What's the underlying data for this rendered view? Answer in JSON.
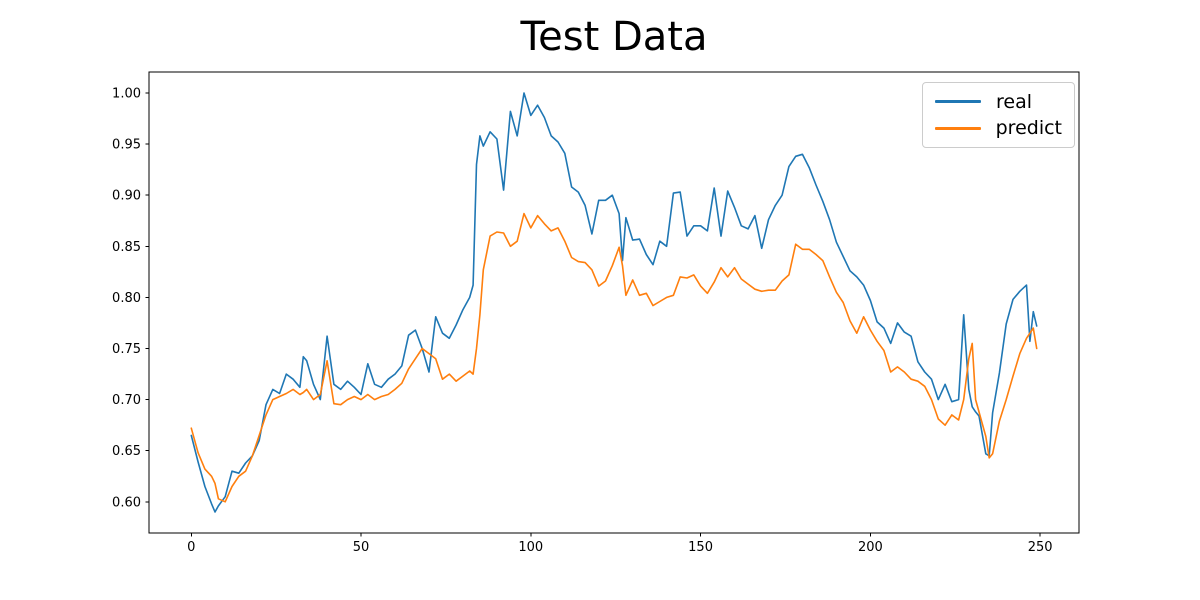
{
  "title": "Test Data",
  "legend": [
    {
      "label": "real",
      "color": "#1f77b4"
    },
    {
      "label": "predict",
      "color": "#ff7f0e"
    }
  ],
  "colors": {
    "real": "#1f77b4",
    "predict": "#ff7f0e",
    "axis": "#000000",
    "legend_border": "#cccccc",
    "background": "#ffffff"
  },
  "chart_data": {
    "type": "line",
    "title": "Test Data",
    "xlabel": "",
    "ylabel": "",
    "grid": false,
    "legend_position": "upper right",
    "xlim": [
      -12.45,
      261.45
    ],
    "ylim": [
      0.5695,
      1.0205
    ],
    "x_ticks": [
      0,
      50,
      100,
      150,
      200,
      250
    ],
    "y_ticks": [
      0.6,
      0.65,
      0.7,
      0.75,
      0.8,
      0.85,
      0.9,
      0.95,
      1.0
    ],
    "x": [
      0,
      2,
      4,
      6,
      7,
      8,
      10,
      12,
      14,
      16,
      18,
      20,
      22,
      24,
      26,
      28,
      30,
      32,
      33,
      34,
      36,
      38,
      40,
      42,
      44,
      46,
      48,
      50,
      52,
      54,
      56,
      58,
      60,
      62,
      64,
      66,
      68,
      70,
      72,
      74,
      76,
      78,
      80,
      82,
      83,
      84,
      85,
      86,
      88,
      90,
      92,
      94,
      96,
      98,
      100,
      102,
      104,
      106,
      108,
      110,
      112,
      114,
      116,
      118,
      120,
      122,
      124,
      126,
      127,
      128,
      130,
      132,
      134,
      136,
      138,
      140,
      142,
      144,
      146,
      148,
      150,
      152,
      154,
      156,
      158,
      160,
      162,
      164,
      166,
      168,
      170,
      172,
      174,
      176,
      178,
      180,
      182,
      184,
      186,
      188,
      190,
      192,
      194,
      196,
      198,
      200,
      202,
      204,
      206,
      208,
      210,
      212,
      214,
      216,
      218,
      220,
      222,
      224,
      226,
      227.5,
      229,
      230,
      231,
      232,
      234,
      235,
      236,
      238,
      240,
      242,
      244,
      246,
      247,
      248,
      249
    ],
    "series": [
      {
        "name": "real",
        "color": "#1f77b4",
        "values": [
          0.665,
          0.639,
          0.615,
          0.598,
          0.59,
          0.596,
          0.605,
          0.63,
          0.628,
          0.638,
          0.645,
          0.66,
          0.695,
          0.71,
          0.706,
          0.725,
          0.72,
          0.712,
          0.742,
          0.738,
          0.715,
          0.7,
          0.762,
          0.715,
          0.71,
          0.718,
          0.712,
          0.705,
          0.735,
          0.715,
          0.712,
          0.72,
          0.725,
          0.733,
          0.763,
          0.768,
          0.75,
          0.727,
          0.781,
          0.765,
          0.76,
          0.773,
          0.788,
          0.8,
          0.812,
          0.93,
          0.958,
          0.948,
          0.962,
          0.955,
          0.905,
          0.982,
          0.958,
          1.0,
          0.978,
          0.988,
          0.976,
          0.958,
          0.952,
          0.941,
          0.908,
          0.903,
          0.89,
          0.862,
          0.895,
          0.895,
          0.9,
          0.882,
          0.836,
          0.878,
          0.856,
          0.857,
          0.842,
          0.832,
          0.855,
          0.85,
          0.902,
          0.903,
          0.86,
          0.87,
          0.87,
          0.865,
          0.907,
          0.86,
          0.904,
          0.888,
          0.87,
          0.867,
          0.88,
          0.848,
          0.876,
          0.89,
          0.9,
          0.928,
          0.938,
          0.94,
          0.927,
          0.91,
          0.894,
          0.876,
          0.854,
          0.84,
          0.826,
          0.82,
          0.812,
          0.797,
          0.776,
          0.77,
          0.755,
          0.775,
          0.766,
          0.762,
          0.737,
          0.727,
          0.72,
          0.7,
          0.715,
          0.698,
          0.7,
          0.783,
          0.71,
          0.693,
          0.688,
          0.684,
          0.647,
          0.645,
          0.687,
          0.726,
          0.774,
          0.798,
          0.806,
          0.812,
          0.757,
          0.786,
          0.772
        ]
      },
      {
        "name": "predict",
        "color": "#ff7f0e",
        "values": [
          0.672,
          0.648,
          0.632,
          0.625,
          0.618,
          0.603,
          0.6,
          0.615,
          0.625,
          0.63,
          0.645,
          0.665,
          0.685,
          0.7,
          0.703,
          0.706,
          0.71,
          0.705,
          0.707,
          0.71,
          0.7,
          0.705,
          0.738,
          0.696,
          0.695,
          0.7,
          0.703,
          0.7,
          0.705,
          0.7,
          0.703,
          0.705,
          0.71,
          0.716,
          0.73,
          0.74,
          0.75,
          0.745,
          0.74,
          0.72,
          0.725,
          0.718,
          0.723,
          0.728,
          0.725,
          0.75,
          0.783,
          0.827,
          0.86,
          0.864,
          0.863,
          0.85,
          0.855,
          0.882,
          0.868,
          0.88,
          0.872,
          0.865,
          0.868,
          0.855,
          0.839,
          0.835,
          0.834,
          0.827,
          0.811,
          0.816,
          0.831,
          0.849,
          0.831,
          0.802,
          0.817,
          0.802,
          0.804,
          0.792,
          0.796,
          0.8,
          0.802,
          0.82,
          0.819,
          0.822,
          0.811,
          0.804,
          0.815,
          0.829,
          0.82,
          0.829,
          0.818,
          0.813,
          0.808,
          0.806,
          0.807,
          0.807,
          0.816,
          0.822,
          0.852,
          0.847,
          0.847,
          0.842,
          0.836,
          0.82,
          0.805,
          0.795,
          0.777,
          0.765,
          0.781,
          0.768,
          0.757,
          0.748,
          0.727,
          0.732,
          0.727,
          0.72,
          0.718,
          0.713,
          0.7,
          0.681,
          0.675,
          0.685,
          0.68,
          0.7,
          0.74,
          0.755,
          0.7,
          0.688,
          0.664,
          0.643,
          0.647,
          0.679,
          0.7,
          0.723,
          0.745,
          0.76,
          0.765,
          0.77,
          0.75
        ]
      }
    ]
  }
}
